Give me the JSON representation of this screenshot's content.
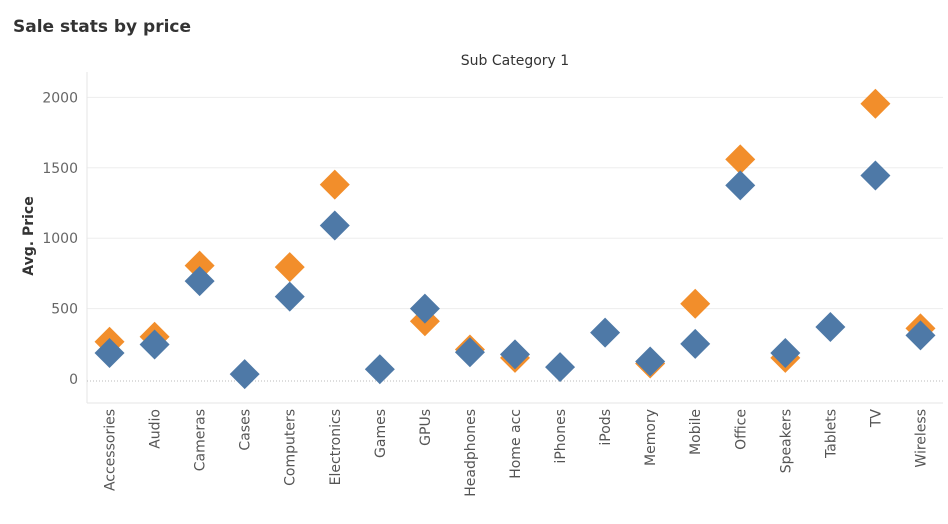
{
  "title": "Sale stats by price",
  "chart_data": {
    "type": "scatter",
    "header": "Sub Category 1",
    "ylabel": "Avg. Price",
    "xlabel": "",
    "ylim": [
      -170,
      2180
    ],
    "yticks": [
      0,
      500,
      1000,
      1500,
      2000
    ],
    "grid": true,
    "legend": "none",
    "categories": [
      "Accessories",
      "Audio",
      "Cameras",
      "Cases",
      "Computers",
      "Electronics",
      "Games",
      "GPUs",
      "Headphones",
      "Home acc",
      "iPhones",
      "iPods",
      "Memory",
      "Mobile",
      "Office",
      "Speakers",
      "Tablets",
      "TV",
      "Wireless"
    ],
    "series": [
      {
        "color": "#f28e2b",
        "values": [
          265,
          300,
          805,
          null,
          795,
          1380,
          null,
          410,
          210,
          150,
          null,
          null,
          110,
          535,
          1560,
          150,
          null,
          1955,
          360
        ]
      },
      {
        "color": "#4e79a7",
        "values": [
          185,
          245,
          695,
          35,
          585,
          1090,
          70,
          500,
          190,
          175,
          85,
          330,
          125,
          250,
          1375,
          185,
          370,
          1445,
          310
        ]
      }
    ]
  }
}
